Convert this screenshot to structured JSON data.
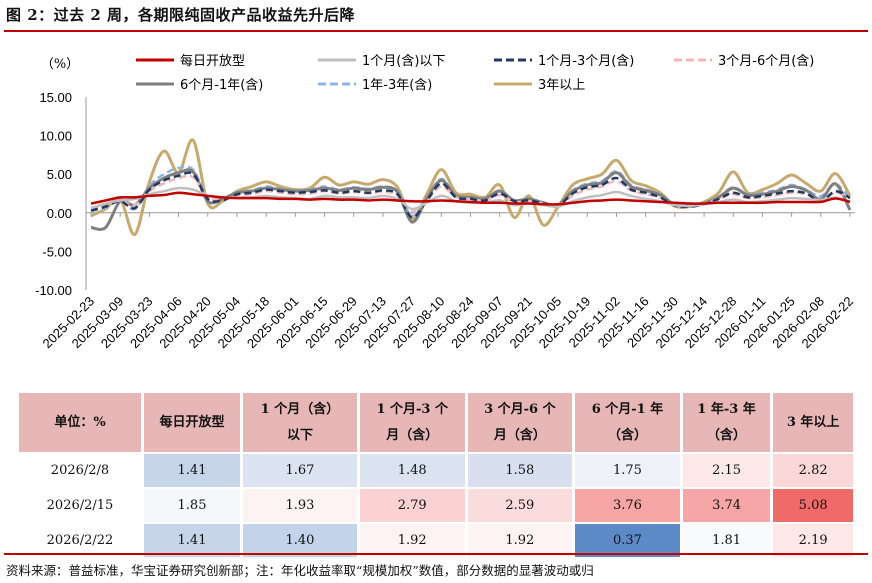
{
  "title": "图 2：过去 2 周，各期限纯固收产品收益先升后降",
  "source": "资料来源：普益标准，华宝证券研究创新部；注：年化收益率取“规模加权”数值，部分数据的显著波动或归",
  "chart_data": {
    "type": "line",
    "ylabel": "（%）",
    "ylim": [
      -10,
      15
    ],
    "yticks": [
      15,
      10,
      5,
      0,
      -5,
      -10
    ],
    "ytick_labels": [
      "15.00",
      "10.00",
      "5.00",
      "0.00",
      "-5.00",
      "-10.00"
    ],
    "xtick_labels": [
      "2025-02-23",
      "2025-03-09",
      "2025-03-23",
      "2025-04-06",
      "2025-04-20",
      "2025-05-04",
      "2025-05-18",
      "2025-06-01",
      "2025-06-15",
      "2025-06-29",
      "2025-07-13",
      "2025-07-27",
      "2025-08-10",
      "2025-08-24",
      "2025-09-07",
      "2025-09-21",
      "2025-10-05",
      "2025-10-19",
      "2025-11-02",
      "2025-11-16",
      "2025-11-30",
      "2025-12-14",
      "2025-12-28",
      "2026-01-11",
      "2026-01-25",
      "2026-02-08",
      "2026-02-22"
    ],
    "x": [
      "02-23",
      "03-02",
      "03-09",
      "03-16",
      "03-23",
      "03-30",
      "04-06",
      "04-13",
      "04-20",
      "04-27",
      "05-04",
      "05-11",
      "05-18",
      "05-25",
      "06-01",
      "06-08",
      "06-15",
      "06-22",
      "06-29",
      "07-06",
      "07-13",
      "07-20",
      "07-27",
      "08-03",
      "08-10",
      "08-17",
      "08-24",
      "08-31",
      "09-07",
      "09-14",
      "09-21",
      "09-28",
      "10-05",
      "10-12",
      "10-19",
      "10-26",
      "11-02",
      "11-09",
      "11-16",
      "11-23",
      "11-30",
      "12-07",
      "12-14",
      "12-21",
      "12-28",
      "01-04",
      "01-11",
      "01-18",
      "01-25",
      "02-01",
      "02-08",
      "02-15",
      "02-22"
    ],
    "series": [
      {
        "name": "每日开放型",
        "color": "#c00000",
        "style": "solid",
        "width": 2.5,
        "values": [
          1.2,
          1.6,
          2.0,
          2.0,
          2.2,
          2.3,
          2.6,
          2.4,
          2.2,
          2.0,
          1.9,
          1.9,
          1.9,
          1.8,
          1.8,
          1.7,
          1.8,
          1.7,
          1.7,
          1.6,
          1.7,
          1.6,
          1.5,
          1.5,
          1.6,
          1.5,
          1.4,
          1.3,
          1.3,
          1.2,
          1.2,
          1.1,
          1.1,
          1.3,
          1.5,
          1.6,
          1.7,
          1.6,
          1.5,
          1.4,
          1.3,
          1.2,
          1.2,
          1.3,
          1.3,
          1.3,
          1.3,
          1.4,
          1.4,
          1.4,
          1.41,
          1.85,
          1.41
        ]
      },
      {
        "name": "1个月(含)以下",
        "color": "#bfbfbf",
        "style": "solid",
        "width": 2.5,
        "values": [
          0.6,
          1.2,
          1.6,
          1.8,
          2.4,
          2.8,
          3.2,
          3.0,
          2.2,
          2.0,
          2.0,
          2.0,
          2.2,
          2.0,
          1.9,
          1.8,
          2.2,
          2.0,
          2.0,
          1.9,
          2.2,
          1.8,
          0.5,
          1.3,
          2.2,
          1.5,
          1.3,
          1.3,
          1.6,
          1.0,
          1.2,
          1.0,
          0.8,
          1.5,
          2.0,
          2.3,
          2.7,
          2.2,
          1.8,
          1.5,
          1.0,
          0.9,
          1.1,
          1.4,
          1.7,
          1.4,
          1.5,
          1.7,
          1.9,
          1.8,
          1.67,
          1.93,
          1.4
        ]
      },
      {
        "name": "1个月-3个月(含)",
        "color": "#1f3864",
        "style": "dash",
        "width": 2.5,
        "values": [
          0.3,
          0.8,
          1.5,
          0.6,
          3.0,
          4.2,
          4.8,
          5.0,
          1.8,
          1.6,
          2.4,
          2.6,
          3.0,
          2.8,
          2.6,
          2.7,
          2.9,
          2.6,
          2.8,
          2.6,
          2.9,
          2.4,
          -0.6,
          1.6,
          3.8,
          2.0,
          1.8,
          1.6,
          2.5,
          1.5,
          1.6,
          1.2,
          0.9,
          2.5,
          3.3,
          3.6,
          4.5,
          3.0,
          2.6,
          2.0,
          0.9,
          0.8,
          1.1,
          1.8,
          2.6,
          2.0,
          2.2,
          2.5,
          2.8,
          2.5,
          1.48,
          2.79,
          1.92
        ]
      },
      {
        "name": "3个月-6个月(含)",
        "color": "#f4b6b6",
        "style": "dash",
        "width": 2.5,
        "values": [
          0.5,
          1.0,
          1.6,
          1.0,
          2.8,
          3.8,
          4.5,
          4.6,
          2.0,
          1.8,
          2.3,
          2.4,
          2.8,
          2.6,
          2.4,
          2.5,
          2.8,
          2.5,
          2.7,
          2.5,
          2.7,
          2.3,
          0.2,
          1.6,
          3.4,
          2.0,
          1.8,
          1.6,
          2.3,
          1.4,
          1.5,
          1.2,
          0.9,
          2.2,
          3.0,
          3.4,
          4.1,
          2.9,
          2.4,
          2.0,
          1.0,
          0.9,
          1.2,
          1.8,
          2.4,
          1.9,
          2.0,
          2.3,
          2.6,
          2.4,
          1.58,
          2.59,
          1.92
        ]
      },
      {
        "name": "6个月-1年(含)",
        "color": "#7f7f7f",
        "style": "solid",
        "width": 3,
        "values": [
          -1.9,
          -1.9,
          1.5,
          1.0,
          3.2,
          4.5,
          5.2,
          5.3,
          1.5,
          1.8,
          2.6,
          2.8,
          3.2,
          3.0,
          2.8,
          2.9,
          3.2,
          2.9,
          3.2,
          3.0,
          3.3,
          2.7,
          -1.2,
          1.8,
          4.2,
          2.2,
          2.0,
          1.8,
          2.8,
          1.6,
          1.8,
          1.3,
          1.0,
          2.8,
          3.6,
          3.9,
          5.2,
          3.4,
          2.9,
          2.3,
          1.0,
          0.9,
          1.2,
          2.0,
          3.2,
          2.3,
          2.4,
          2.8,
          3.4,
          2.9,
          1.75,
          3.76,
          0.37
        ]
      },
      {
        "name": "1年-3年(含)",
        "color": "#8eb4e3",
        "style": "dash",
        "width": 2.5,
        "values": [
          0.2,
          0.7,
          1.6,
          0.5,
          3.5,
          5.0,
          5.8,
          5.6,
          1.9,
          1.8,
          2.7,
          2.9,
          3.4,
          3.1,
          2.9,
          3.0,
          3.4,
          3.0,
          3.3,
          3.1,
          3.4,
          2.8,
          -0.4,
          1.9,
          4.4,
          2.2,
          2.0,
          1.8,
          2.9,
          1.6,
          1.8,
          1.3,
          1.0,
          2.9,
          3.8,
          4.1,
          5.4,
          3.6,
          3.0,
          2.4,
          1.1,
          1.0,
          1.3,
          2.1,
          3.3,
          2.4,
          2.6,
          3.0,
          3.6,
          3.0,
          2.15,
          3.74,
          1.81
        ]
      },
      {
        "name": "3年以上",
        "color": "#c7a96b",
        "style": "solid",
        "width": 3,
        "values": [
          -0.4,
          0.5,
          1.8,
          -2.8,
          4.0,
          8.0,
          5.2,
          9.4,
          1.2,
          1.5,
          2.8,
          3.4,
          4.0,
          3.4,
          3.0,
          3.2,
          4.6,
          3.6,
          4.0,
          3.7,
          4.3,
          3.3,
          -0.8,
          2.4,
          5.6,
          2.6,
          2.4,
          2.0,
          3.6,
          -0.6,
          2.2,
          -1.6,
          0.8,
          3.6,
          4.4,
          5.0,
          6.8,
          4.2,
          3.5,
          2.6,
          0.9,
          0.8,
          1.4,
          2.6,
          5.3,
          2.6,
          3.0,
          3.8,
          4.9,
          3.8,
          2.82,
          5.08,
          2.19
        ]
      }
    ]
  },
  "table": {
    "header": [
      [
        "单位：%"
      ],
      [
        "每日开放型"
      ],
      [
        "1 个月（含）",
        "以下"
      ],
      [
        "1 个月-3 个",
        "月（含）"
      ],
      [
        "3 个月-6 个",
        "月（含）"
      ],
      [
        "6 个月-1 年",
        "（含）"
      ],
      [
        "1 年-3 年",
        "（含）"
      ],
      [
        "3 年以上"
      ]
    ],
    "rows": [
      {
        "label": "2026/2/8",
        "values": [
          "1.41",
          "1.67",
          "1.48",
          "1.58",
          "1.75",
          "2.15",
          "2.82"
        ],
        "colors": [
          "#c6d5ea",
          "#dbe3f1",
          "#dbe3f1",
          "#d8e0ef",
          "#eef1f8",
          "#fde8e8",
          "#fbd7d7"
        ]
      },
      {
        "label": "2026/2/15",
        "values": [
          "1.85",
          "1.93",
          "2.79",
          "2.59",
          "3.76",
          "3.74",
          "5.08"
        ],
        "colors": [
          "#f5f7fb",
          "#fdf3f3",
          "#fbd1d1",
          "#fbdcdc",
          "#f6a4a4",
          "#f6a6a6",
          "#f06a6a"
        ]
      },
      {
        "label": "2026/2/22",
        "values": [
          "1.41",
          "1.40",
          "1.92",
          "1.92",
          "0.37",
          "1.81",
          "2.19"
        ],
        "colors": [
          "#c6d5ea",
          "#c3d3e9",
          "#fdf3f3",
          "#fdf3f3",
          "#5b8ac7",
          "#f9fafc",
          "#fde8e8"
        ]
      }
    ]
  }
}
